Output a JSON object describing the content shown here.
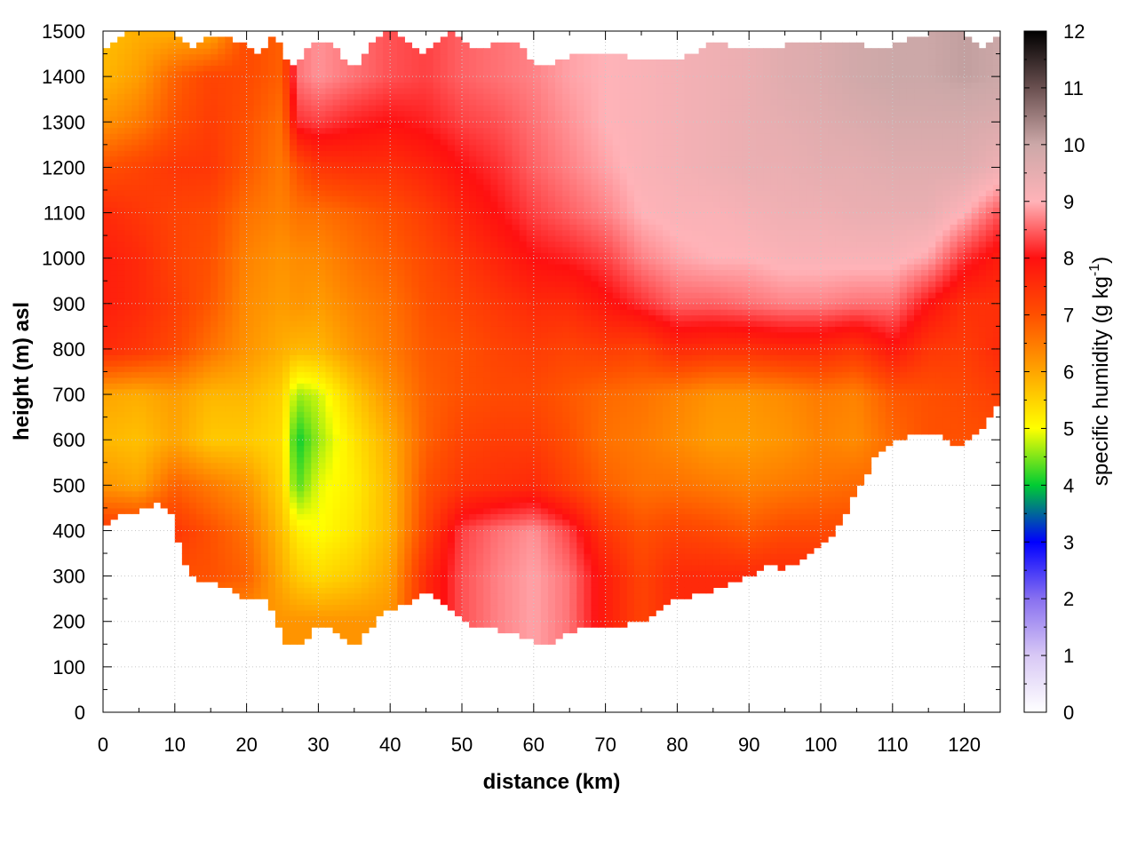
{
  "chart_data": {
    "type": "heatmap",
    "xlabel": "distance (km)",
    "ylabel": "height (m) asl",
    "colorbar_label_main": "specific humidity (g kg",
    "colorbar_label_sup": "-1",
    "colorbar_label_close": ")",
    "xlim": [
      0,
      125
    ],
    "ylim": [
      0,
      1500
    ],
    "clim": [
      0,
      12
    ],
    "x_ticks": [
      0,
      10,
      20,
      30,
      40,
      50,
      60,
      70,
      80,
      90,
      100,
      110,
      120
    ],
    "y_ticks": [
      0,
      100,
      200,
      300,
      400,
      500,
      600,
      700,
      800,
      900,
      1000,
      1100,
      1200,
      1300,
      1400,
      1500
    ],
    "c_ticks": [
      0,
      1,
      2,
      3,
      4,
      5,
      6,
      7,
      8,
      9,
      10,
      11,
      12
    ],
    "x_tick_labels": [
      "0",
      "10",
      "20",
      "30",
      "40",
      "50",
      "60",
      "70",
      "80",
      "90",
      "100",
      "110",
      "120"
    ],
    "y_tick_labels": [
      "0",
      "100",
      "200",
      "300",
      "400",
      "500",
      "600",
      "700",
      "800",
      "900",
      "1000",
      "1100",
      "1200",
      "1300",
      "1400",
      "1500"
    ],
    "c_tick_labels": [
      "0",
      "1",
      "2",
      "3",
      "4",
      "5",
      "6",
      "7",
      "8",
      "9",
      "10",
      "11",
      "12"
    ],
    "grid": true,
    "colormap": [
      {
        "v": 0,
        "c": "#ffffff"
      },
      {
        "v": 1,
        "c": "#d8c8f5"
      },
      {
        "v": 2,
        "c": "#8870f0"
      },
      {
        "v": 3,
        "c": "#0000ff"
      },
      {
        "v": 4,
        "c": "#00cc33"
      },
      {
        "v": 5,
        "c": "#ffff00"
      },
      {
        "v": 6,
        "c": "#ffa500"
      },
      {
        "v": 7,
        "c": "#ff5000"
      },
      {
        "v": 8,
        "c": "#ff1010"
      },
      {
        "v": 9,
        "c": "#ffb3b8"
      },
      {
        "v": 10,
        "c": "#cca8a8"
      },
      {
        "v": 11,
        "c": "#6a5050"
      },
      {
        "v": 12,
        "c": "#000000"
      }
    ],
    "grid_x": [
      0,
      5,
      10,
      15,
      20,
      25,
      27,
      30,
      35,
      40,
      45,
      50,
      55,
      60,
      65,
      70,
      75,
      80,
      85,
      90,
      95,
      100,
      105,
      110,
      115,
      120,
      125
    ],
    "grid_y": [
      100,
      200,
      300,
      400,
      500,
      600,
      700,
      800,
      900,
      1000,
      1100,
      1200,
      1300,
      1400,
      1500
    ],
    "grid_values": [
      [
        null,
        null,
        null,
        null,
        null,
        null,
        null,
        null,
        null,
        null,
        null,
        null,
        null,
        null,
        null,
        null,
        null,
        null,
        null,
        null,
        null,
        null,
        null,
        null,
        null,
        null,
        null
      ],
      [
        null,
        null,
        null,
        null,
        null,
        null,
        6.2,
        null,
        null,
        null,
        null,
        null,
        null,
        null,
        null,
        null,
        null,
        null,
        null,
        null,
        null,
        null,
        null,
        null,
        null,
        null,
        null
      ],
      [
        null,
        null,
        null,
        7.0,
        6.8,
        5.9,
        5.6,
        5.4,
        5.6,
        6.0,
        7.6,
        8.4,
        8.7,
        8.9,
        8.6,
        7.8,
        7.2,
        7.6,
        null,
        null,
        null,
        null,
        null,
        null,
        null,
        null,
        null
      ],
      [
        null,
        null,
        7.4,
        7.0,
        6.6,
        5.7,
        5.2,
        5.0,
        5.3,
        5.8,
        7.2,
        8.3,
        8.6,
        8.8,
        8.3,
        7.4,
        7.0,
        7.2,
        7.1,
        6.9,
        7.1,
        null,
        null,
        null,
        null,
        null,
        null
      ],
      [
        6.2,
        6.0,
        6.8,
        6.5,
        6.2,
        5.5,
        4.3,
        4.9,
        5.2,
        5.8,
        7.0,
        7.4,
        7.5,
        7.6,
        7.2,
        6.8,
        6.6,
        6.6,
        6.5,
        6.4,
        6.5,
        6.6,
        6.7,
        null,
        null,
        null,
        null
      ],
      [
        5.8,
        5.7,
        6.0,
        5.6,
        5.6,
        5.4,
        4.0,
        4.6,
        5.3,
        5.9,
        6.8,
        7.2,
        7.3,
        7.3,
        7.0,
        6.6,
        6.5,
        6.3,
        6.1,
        6.1,
        6.2,
        6.4,
        6.3,
        6.7,
        7.0,
        null,
        null
      ],
      [
        6.0,
        5.9,
        6.1,
        5.8,
        5.8,
        5.5,
        4.6,
        4.8,
        5.6,
        6.2,
        6.8,
        7.0,
        7.1,
        7.1,
        6.9,
        6.7,
        6.6,
        6.4,
        6.2,
        6.2,
        6.3,
        6.5,
        6.4,
        6.9,
        7.0,
        7.1,
        7.3
      ],
      [
        7.6,
        7.4,
        7.1,
        6.6,
        6.2,
        5.9,
        5.8,
        5.8,
        6.2,
        6.5,
        6.9,
        7.0,
        7.2,
        7.3,
        7.2,
        7.3,
        7.2,
        7.6,
        7.5,
        7.5,
        7.6,
        7.6,
        7.4,
        7.9,
        7.4,
        7.3,
        7.6
      ],
      [
        7.8,
        7.6,
        7.3,
        6.9,
        6.3,
        6.1,
        6.2,
        6.1,
        6.4,
        6.6,
        7.0,
        7.2,
        7.4,
        7.6,
        7.6,
        7.9,
        8.2,
        8.5,
        8.5,
        8.6,
        8.7,
        8.7,
        8.6,
        8.6,
        8.0,
        7.5,
        7.5
      ],
      [
        7.8,
        7.6,
        7.2,
        7.0,
        6.4,
        6.2,
        6.3,
        6.3,
        6.6,
        6.8,
        7.1,
        7.4,
        7.7,
        8.0,
        8.1,
        8.3,
        8.7,
        8.9,
        9.0,
        9.0,
        9.1,
        9.1,
        9.1,
        9.1,
        8.9,
        8.2,
        7.8
      ],
      [
        7.6,
        7.4,
        7.2,
        7.1,
        6.6,
        6.4,
        6.6,
        6.6,
        6.8,
        7.0,
        7.3,
        7.7,
        8.0,
        8.3,
        8.5,
        8.7,
        9.0,
        9.1,
        9.1,
        9.2,
        9.3,
        9.3,
        9.4,
        9.4,
        9.4,
        9.0,
        8.4
      ],
      [
        7.0,
        7.2,
        7.4,
        7.4,
        6.9,
        6.5,
        7.0,
        7.4,
        7.5,
        7.5,
        7.7,
        8.0,
        8.2,
        8.5,
        8.7,
        8.9,
        9.1,
        9.2,
        9.3,
        9.4,
        9.4,
        9.5,
        9.5,
        9.6,
        9.6,
        9.6,
        9.3
      ],
      [
        6.2,
        6.5,
        7.0,
        7.3,
        7.0,
        6.6,
        8.2,
        8.3,
        8.1,
        8.0,
        8.1,
        8.3,
        8.4,
        8.6,
        8.8,
        9.0,
        9.1,
        9.2,
        9.3,
        9.4,
        9.5,
        9.6,
        9.7,
        9.8,
        9.8,
        9.8,
        9.7
      ],
      [
        5.8,
        6.1,
        6.8,
        7.2,
        7.1,
        6.8,
        8.6,
        8.8,
        8.6,
        8.4,
        8.3,
        8.5,
        8.6,
        8.7,
        8.9,
        9.0,
        9.1,
        9.2,
        9.3,
        9.4,
        9.6,
        9.7,
        9.9,
        10.0,
        10.0,
        10.1,
        10.0
      ],
      [
        5.7,
        5.9,
        null,
        null,
        null,
        null,
        null,
        null,
        null,
        null,
        null,
        null,
        null,
        null,
        null,
        null,
        null,
        null,
        null,
        null,
        null,
        null,
        null,
        null,
        null,
        null,
        null
      ]
    ],
    "lower_boundary": [
      [
        0,
        400
      ],
      [
        2,
        430
      ],
      [
        5,
        440
      ],
      [
        7,
        460
      ],
      [
        9,
        450
      ],
      [
        10,
        420
      ],
      [
        11,
        330
      ],
      [
        13,
        290
      ],
      [
        16,
        285
      ],
      [
        18,
        265
      ],
      [
        20,
        250
      ],
      [
        22,
        255
      ],
      [
        24,
        220
      ],
      [
        25,
        160
      ],
      [
        26,
        140
      ],
      [
        28,
        160
      ],
      [
        30,
        195
      ],
      [
        32,
        185
      ],
      [
        34,
        150
      ],
      [
        35,
        145
      ],
      [
        37,
        180
      ],
      [
        39,
        230
      ],
      [
        41,
        230
      ],
      [
        43,
        245
      ],
      [
        45,
        265
      ],
      [
        47,
        240
      ],
      [
        50,
        200
      ],
      [
        53,
        185
      ],
      [
        56,
        180
      ],
      [
        59,
        160
      ],
      [
        62,
        145
      ],
      [
        64,
        170
      ],
      [
        66,
        185
      ],
      [
        70,
        190
      ],
      [
        74,
        195
      ],
      [
        76,
        210
      ],
      [
        78,
        235
      ],
      [
        80,
        250
      ],
      [
        84,
        265
      ],
      [
        88,
        290
      ],
      [
        91,
        300
      ],
      [
        93,
        330
      ],
      [
        95,
        315
      ],
      [
        98,
        340
      ],
      [
        101,
        380
      ],
      [
        103,
        420
      ],
      [
        105,
        490
      ],
      [
        108,
        570
      ],
      [
        111,
        600
      ],
      [
        113,
        610
      ],
      [
        115,
        620
      ],
      [
        117,
        605
      ],
      [
        119,
        590
      ],
      [
        121,
        600
      ],
      [
        123,
        640
      ],
      [
        125,
        690
      ]
    ],
    "upper_boundary": [
      [
        0,
        1460
      ],
      [
        2,
        1480
      ],
      [
        4,
        1500
      ],
      [
        10,
        1500
      ],
      [
        12,
        1460
      ],
      [
        14,
        1480
      ],
      [
        16,
        1490
      ],
      [
        18,
        1480
      ],
      [
        20,
        1465
      ],
      [
        22,
        1445
      ],
      [
        23,
        1480
      ],
      [
        24,
        1500
      ],
      [
        26,
        1420
      ],
      [
        27,
        1420
      ],
      [
        28,
        1460
      ],
      [
        30,
        1480
      ],
      [
        32,
        1480
      ],
      [
        34,
        1420
      ],
      [
        35,
        1420
      ],
      [
        37,
        1460
      ],
      [
        39,
        1500
      ],
      [
        41,
        1500
      ],
      [
        43,
        1470
      ],
      [
        45,
        1450
      ],
      [
        47,
        1480
      ],
      [
        49,
        1500
      ],
      [
        51,
        1470
      ],
      [
        53,
        1460
      ],
      [
        55,
        1475
      ],
      [
        57,
        1480
      ],
      [
        59,
        1450
      ],
      [
        61,
        1420
      ],
      [
        62,
        1420
      ],
      [
        64,
        1440
      ],
      [
        66,
        1450
      ],
      [
        70,
        1450
      ],
      [
        74,
        1440
      ],
      [
        78,
        1430
      ],
      [
        82,
        1450
      ],
      [
        86,
        1480
      ],
      [
        88,
        1460
      ],
      [
        92,
        1460
      ],
      [
        96,
        1470
      ],
      [
        100,
        1480
      ],
      [
        104,
        1480
      ],
      [
        108,
        1460
      ],
      [
        112,
        1480
      ],
      [
        116,
        1500
      ],
      [
        120,
        1500
      ],
      [
        122,
        1460
      ],
      [
        125,
        1500
      ]
    ]
  }
}
